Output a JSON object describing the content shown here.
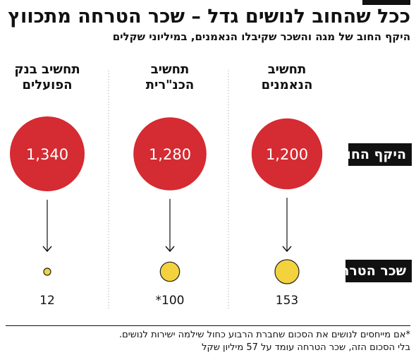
{
  "title": "ככל שהחוב לנושים גדל – שכר הטרחה מתכווץ",
  "subtitle": "היקף החוב של מגה והשכר שקיבלו הנאמנים, במיליוני שקלים",
  "row_labels": {
    "debt": "היקף החוב",
    "fee": "שכר הטרחה"
  },
  "columns": [
    {
      "line1": "תחשיב",
      "line2": "הנאמנים"
    },
    {
      "line1": "תחשיב",
      "line2": "הכנ\"רית"
    },
    {
      "line1": "תחשיב בנק",
      "line2": "הפועלים"
    }
  ],
  "footnotes": [
    "*אם מייחסים לנושים את הסכום שחברת הרבוע כחול שילמה ישירות לנושים.",
    "בלי הסכום הזה, שכר הטרחה עומד על 57 מיליון שקל"
  ],
  "colors": {
    "debt": "#d52b32",
    "fee": "#f3d23d",
    "outline": "#222222",
    "divider": "#999999"
  },
  "chart_data": {
    "type": "bubble",
    "title": "ככל שהחוב לנושים גדל – שכר הטרחה מתכווץ",
    "categories": [
      "תחשיב הנאמנים",
      "תחשיב הכנ\"רית",
      "תחשיב בנק הפועלים"
    ],
    "series": [
      {
        "name": "היקף החוב",
        "values": [
          1200,
          1280,
          1340
        ],
        "labels": [
          "1,200",
          "1,280",
          "1,340"
        ],
        "color": "#d52b32"
      },
      {
        "name": "שכר הטרחה",
        "values": [
          153,
          100,
          12
        ],
        "labels": [
          "153",
          "*100",
          "12"
        ],
        "color": "#f3d23d"
      }
    ]
  }
}
